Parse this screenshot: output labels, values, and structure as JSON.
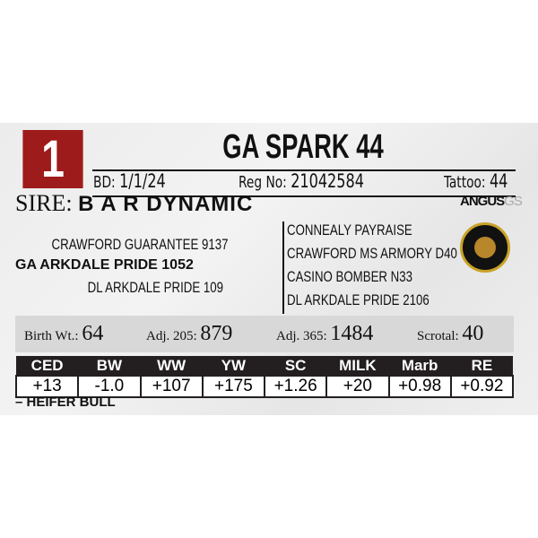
{
  "lot_number": "1",
  "name": "GA SPARK 44",
  "bd_label": "BD:",
  "bd": "1/1/24",
  "reg_label": "Reg No:",
  "reg": "21042584",
  "tattoo_label": "Tattoo:",
  "tattoo": "44",
  "sire_label": "SIRE:",
  "sire": "B A R DYNAMIC",
  "pedigree_left": [
    "CRAWFORD GUARANTEE 9137",
    "GA ARKDALE PRIDE 1052",
    "DL ARKDALE PRIDE 109"
  ],
  "pedigree_right": [
    "CONNEALY PAYRAISE",
    "CRAWFORD MS ARMORY D40",
    "CASINO BOMBER N33",
    "DL ARKDALE PRIDE 2106"
  ],
  "stats": [
    {
      "label": "Birth Wt.:",
      "value": "64"
    },
    {
      "label": "Adj. 205:",
      "value": "879"
    },
    {
      "label": "Adj. 365:",
      "value": "1484"
    },
    {
      "label": "Scrotal:",
      "value": "40"
    }
  ],
  "epd_headers": [
    "CED",
    "BW",
    "WW",
    "YW",
    "SC",
    "MILK",
    "Marb",
    "RE"
  ],
  "epd_values": [
    "+13",
    "-1.0",
    "+107",
    "+175",
    "+1.26",
    "+20",
    "+0.98",
    "+0.92"
  ],
  "note": "– HEIFER BULL",
  "logo_angus": "ANGUS",
  "logo_gs": "GS",
  "colors": {
    "lot_box": "#9e1b1b",
    "table_header": "#231f20",
    "stats_bg": "#d8d8d8"
  }
}
